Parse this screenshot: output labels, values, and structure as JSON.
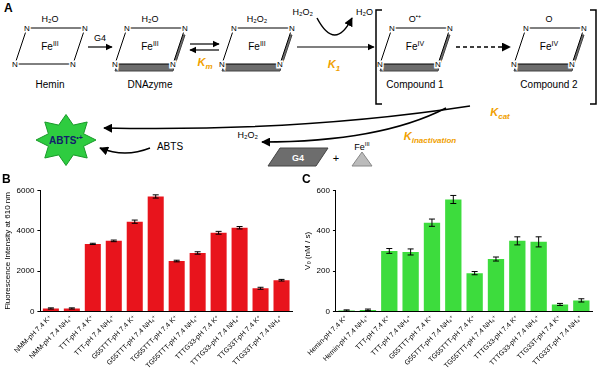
{
  "diagram": {
    "panel": "A",
    "ring_atom": "N",
    "species": [
      {
        "top": "H₂O",
        "metal": "Fe",
        "state": "III",
        "caption": "Hemin",
        "g4": false
      },
      {
        "top": "H₂O",
        "metal": "Fe",
        "state": "III",
        "caption": "DNAzyme",
        "g4": true
      },
      {
        "top": "H₂O₂",
        "metal": "Fe",
        "state": "III",
        "g4": true
      },
      {
        "top": "O",
        "radical": "•+",
        "metal": "Fe",
        "state": "IV",
        "caption": "Compound 1",
        "g4": true
      },
      {
        "top": "O",
        "metal": "Fe",
        "state": "IV",
        "caption": "Compound 2",
        "g4": true
      }
    ],
    "arrow_g4": "G4",
    "k_m": {
      "main": "K",
      "sub": "m"
    },
    "k_1": {
      "main": "K",
      "sub": "1"
    },
    "k_cat": {
      "main": "K",
      "sub": "cat"
    },
    "k_inactivation": {
      "main": "K",
      "sub": "inactivation"
    },
    "oxidant_in": "H₂O₂",
    "oxidant_out": "H₂O",
    "substrate": "ABTS",
    "product": {
      "main": "ABTS",
      "sup": "•+"
    },
    "inactivation_oxidant": "H₂O₂",
    "released": {
      "g4": "G4",
      "joiner": "+",
      "metal": "Fe",
      "state": "III"
    }
  },
  "chart_data": [
    {
      "type": "bar",
      "title": "B",
      "ylabel": "Fluorescence Intensity at 610 nm",
      "categories": [
        "NMM-pH 7.4 K⁺",
        "NMM-pH 7.4 NH₄⁺",
        "TTT-pH 7.4 K⁺",
        "TTT-pH 7.4 NH₄⁺",
        "G55TTT-pH 7.4 K⁺",
        "G55TTT-pH 7.4 NH₄⁺",
        "TG55TTT-pH 7.4 K⁺",
        "TG55TTT-pH 7.4 NH₄⁺",
        "TTTG33-pH 7.4 K⁺",
        "TTTG33-pH 7.4 NH₄⁺",
        "TTG33T-pH 7.4 K⁺",
        "TTG33T-pH 7.4 NH₄⁺"
      ],
      "values": [
        150,
        150,
        3350,
        3500,
        4450,
        5700,
        2500,
        2900,
        3900,
        4150,
        1150,
        1550
      ],
      "errors": [
        30,
        30,
        30,
        40,
        80,
        80,
        40,
        60,
        70,
        60,
        50,
        40
      ],
      "color": "#e8141c",
      "ylim": [
        0,
        6000
      ],
      "yticks": [
        0,
        2000,
        4000,
        6000
      ],
      "grid": false
    },
    {
      "type": "bar",
      "title": "C",
      "ylabel": "V₀ (nM / s)",
      "categories": [
        "Hemin-pH 7.4 K⁺",
        "Hemin-pH 7.4 NH₄⁺",
        "TTT-pH 7.4 K⁺",
        "TTT-pH 7.4 NH₄⁺",
        "G55TTT-pH 7.4 K⁺",
        "G55TTT-pH 7.4 NH₄⁺",
        "TG55TTT-pH 7.4 K⁺",
        "TG55TTT-pH 7.4 NH₄⁺",
        "TTTG33-pH 7.4 K⁺",
        "TTTG33-pH 7.4 NH₄⁺",
        "TTG33T-pH 7.4 K⁺",
        "TTG33T-pH 7.4 NH₄⁺"
      ],
      "values": [
        5,
        8,
        300,
        295,
        440,
        555,
        190,
        260,
        350,
        345,
        35,
        55
      ],
      "errors": [
        3,
        4,
        12,
        15,
        18,
        20,
        8,
        10,
        20,
        25,
        5,
        8
      ],
      "color": "#3ddc3d",
      "ylim": [
        0,
        600
      ],
      "yticks": [
        0,
        200,
        400,
        600
      ],
      "grid": false
    }
  ]
}
